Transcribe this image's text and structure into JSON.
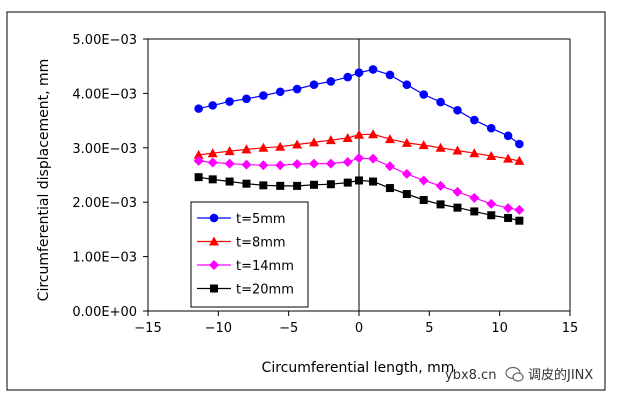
{
  "chart_data": {
    "type": "line",
    "title": "",
    "xlabel": "Circumferential length, mm",
    "ylabel": "Circumferential displacement, mm",
    "xlim": [
      -15,
      15
    ],
    "ylim": [
      0,
      0.005
    ],
    "xticks": [
      -15,
      -10,
      -5,
      0,
      5,
      10,
      15
    ],
    "yticks": [
      0,
      0.001,
      0.002,
      0.003,
      0.004,
      0.005
    ],
    "xtick_labels": [
      "−15",
      "−10",
      "−5",
      "0",
      "5",
      "10",
      "15"
    ],
    "ytick_labels": [
      "0.00E+00",
      "1.00E−03",
      "2.00E−03",
      "3.00E−03",
      "4.00E−03",
      "5.00E−03"
    ],
    "grid": true,
    "legend_position": "bottom-left",
    "x": [
      -11.4,
      -10.4,
      -9.2,
      -8.0,
      -6.8,
      -5.6,
      -4.4,
      -3.2,
      -2.0,
      -0.8,
      0.0,
      1.0,
      2.2,
      3.4,
      4.6,
      5.8,
      7.0,
      8.2,
      9.4,
      10.6,
      11.4
    ],
    "series": [
      {
        "name": "t=5mm",
        "color": "#0000ff",
        "marker": "circle",
        "values": [
          0.00372,
          0.00378,
          0.00385,
          0.0039,
          0.00396,
          0.00403,
          0.00408,
          0.00416,
          0.00422,
          0.0043,
          0.00438,
          0.00444,
          0.00434,
          0.00416,
          0.00398,
          0.00384,
          0.00369,
          0.00351,
          0.00336,
          0.00322,
          0.00307
        ]
      },
      {
        "name": "t=8mm",
        "color": "#ff0000",
        "marker": "triangle",
        "values": [
          0.00287,
          0.0029,
          0.00294,
          0.00297,
          0.003,
          0.00302,
          0.00306,
          0.0031,
          0.00314,
          0.00318,
          0.00324,
          0.00325,
          0.00316,
          0.00309,
          0.00305,
          0.003,
          0.00295,
          0.0029,
          0.00285,
          0.0028,
          0.00276
        ]
      },
      {
        "name": "t=14mm",
        "color": "#ff00ff",
        "marker": "diamond",
        "values": [
          0.00276,
          0.00273,
          0.00271,
          0.00269,
          0.00268,
          0.00268,
          0.0027,
          0.00271,
          0.00271,
          0.00274,
          0.00281,
          0.0028,
          0.00266,
          0.00252,
          0.0024,
          0.0023,
          0.00219,
          0.00208,
          0.00197,
          0.00189,
          0.00186
        ]
      },
      {
        "name": "t=20mm",
        "color": "#000000",
        "marker": "square",
        "values": [
          0.00246,
          0.00242,
          0.00238,
          0.00234,
          0.00231,
          0.0023,
          0.0023,
          0.00232,
          0.00233,
          0.00236,
          0.0024,
          0.00238,
          0.00226,
          0.00215,
          0.00204,
          0.00196,
          0.0019,
          0.00183,
          0.00176,
          0.00171,
          0.00166
        ]
      }
    ]
  },
  "watermark": {
    "site": "ybx8.cn",
    "brand": "调皮的JINX"
  }
}
